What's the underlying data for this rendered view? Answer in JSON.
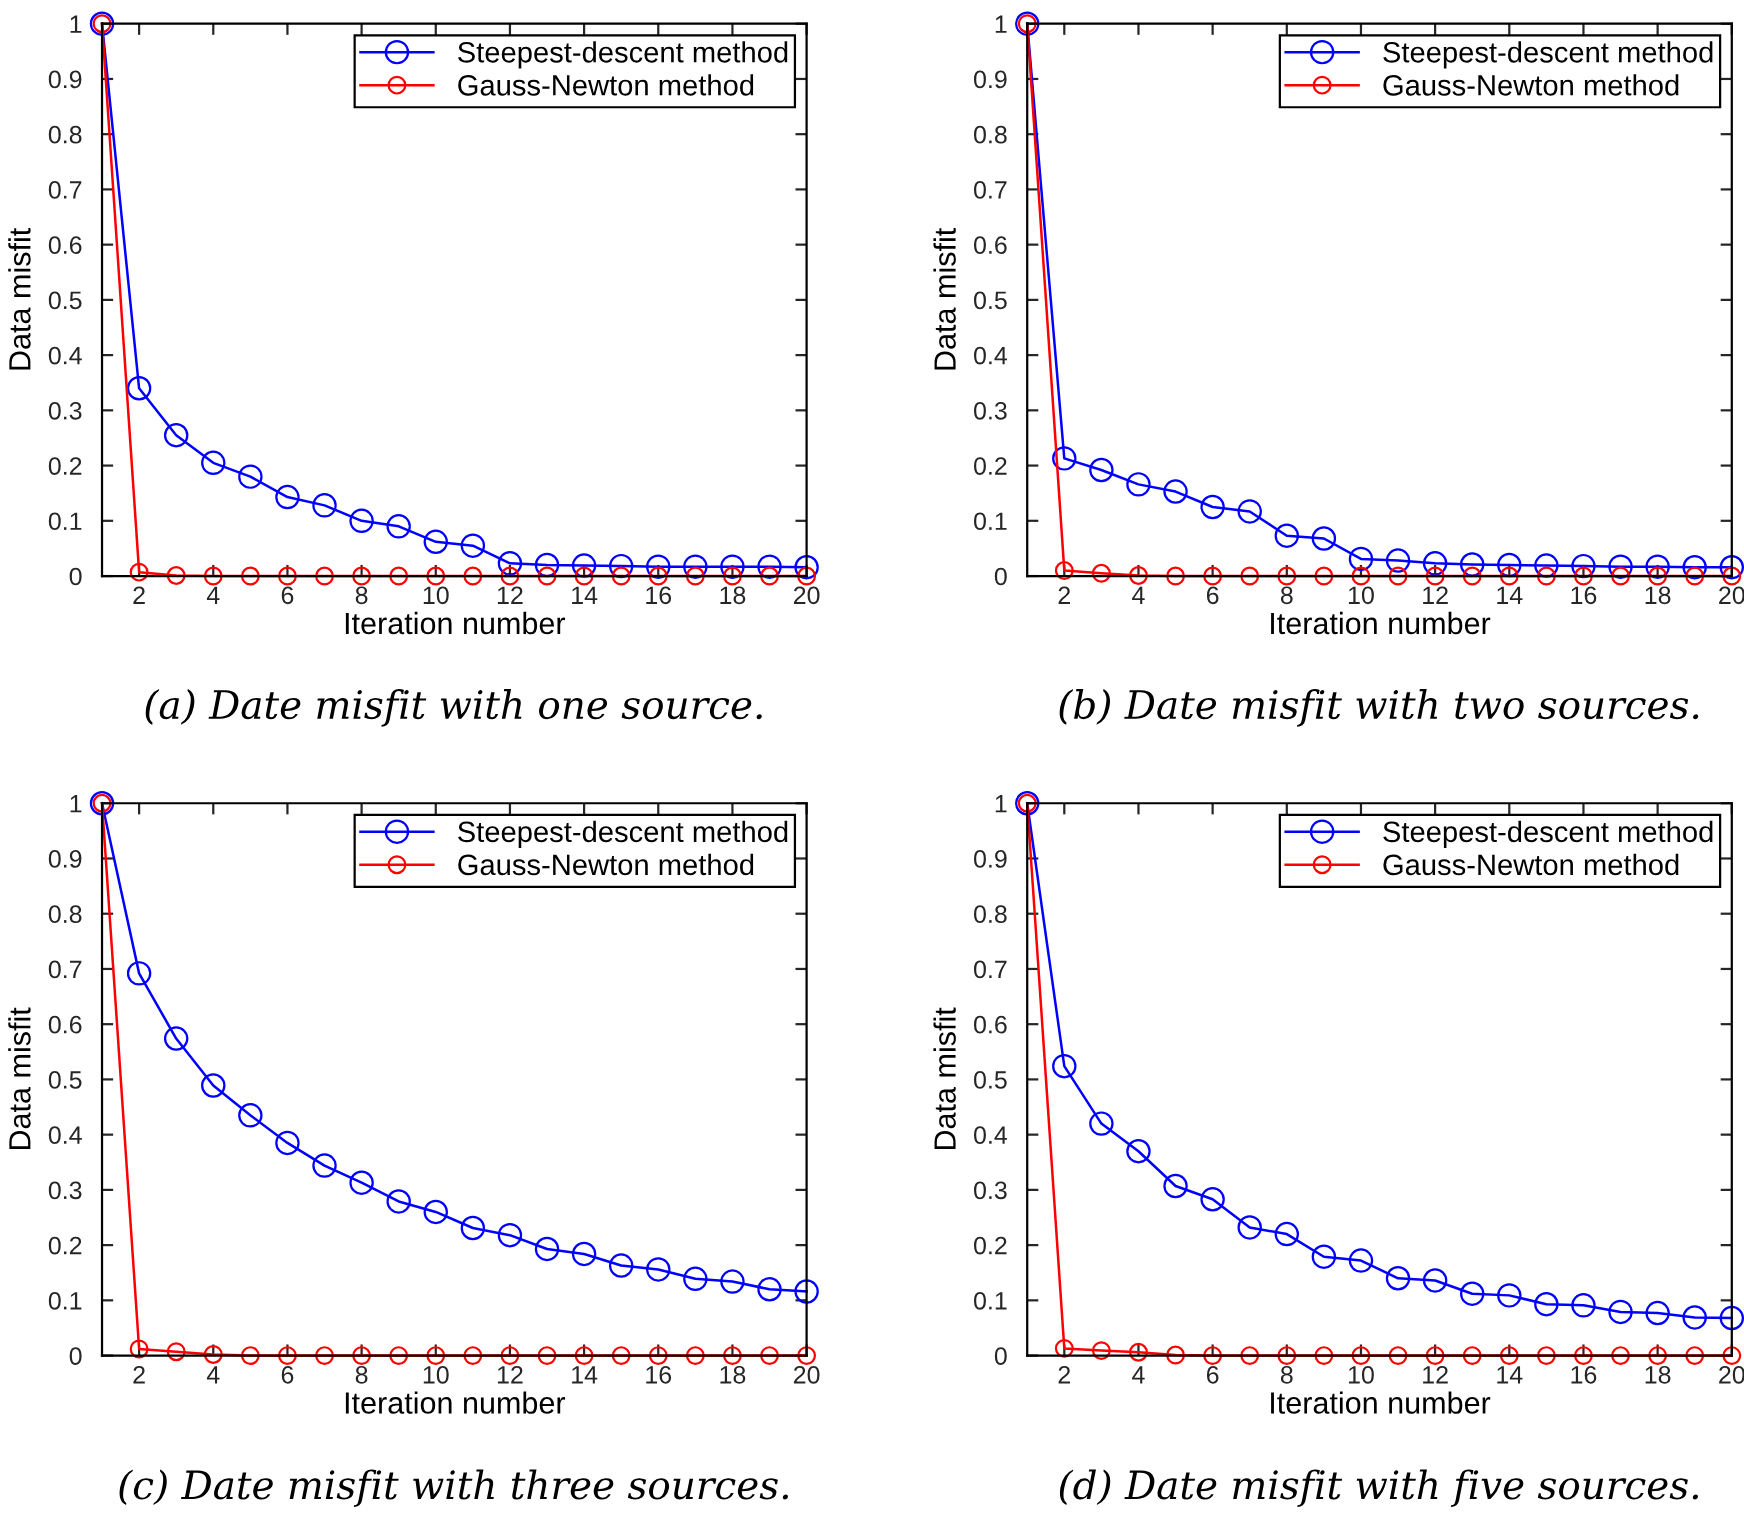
{
  "chart_data": [
    {
      "type": "line",
      "xlabel": "Iteration number",
      "ylabel": "Data misfit",
      "annotations": [
        "(a) Date misfit with one source."
      ],
      "x": [
        1,
        2,
        3,
        4,
        5,
        6,
        7,
        8,
        9,
        10,
        11,
        12,
        13,
        14,
        15,
        16,
        17,
        18,
        19,
        20
      ],
      "xlim": [
        1,
        20
      ],
      "xticks": [
        2,
        4,
        6,
        8,
        10,
        12,
        14,
        16,
        18,
        20
      ],
      "ylim": [
        0,
        1
      ],
      "yticks": [
        0,
        0.1,
        0.2,
        0.3,
        0.4,
        0.5,
        0.6,
        0.7,
        0.8,
        0.9,
        1
      ],
      "legend": "top right",
      "marker": "circle",
      "line_style": "solid",
      "series": [
        {
          "name": "Steepest-descent method",
          "color": "#0000ff",
          "values": [
            1,
            0.34,
            0.255,
            0.205,
            0.18,
            0.143,
            0.128,
            0.1,
            0.09,
            0.062,
            0.055,
            0.023,
            0.02,
            0.019,
            0.018,
            0.017,
            0.017,
            0.017,
            0.017,
            0.016
          ]
        },
        {
          "name": "Gauss-Newton method",
          "color": "#ff0000",
          "values": [
            1,
            0.007,
            0.001,
            0,
            0,
            0,
            0,
            0,
            0,
            0,
            0,
            0,
            0,
            0,
            0,
            0,
            0,
            0,
            0,
            0
          ]
        }
      ]
    },
    {
      "type": "line",
      "xlabel": "Iteration number",
      "ylabel": "Data misfit",
      "annotations": [
        "(b) Date misfit with two sources."
      ],
      "x": [
        1,
        2,
        3,
        4,
        5,
        6,
        7,
        8,
        9,
        10,
        11,
        12,
        13,
        14,
        15,
        16,
        17,
        18,
        19,
        20
      ],
      "xlim": [
        1,
        20
      ],
      "xticks": [
        2,
        4,
        6,
        8,
        10,
        12,
        14,
        16,
        18,
        20
      ],
      "ylim": [
        0,
        1
      ],
      "yticks": [
        0,
        0.1,
        0.2,
        0.3,
        0.4,
        0.5,
        0.6,
        0.7,
        0.8,
        0.9,
        1
      ],
      "legend": "top right",
      "marker": "circle",
      "line_style": "solid",
      "series": [
        {
          "name": "Steepest-descent method",
          "color": "#0000ff",
          "values": [
            1,
            0.213,
            0.192,
            0.166,
            0.153,
            0.125,
            0.117,
            0.073,
            0.068,
            0.031,
            0.028,
            0.023,
            0.021,
            0.02,
            0.019,
            0.018,
            0.017,
            0.017,
            0.016,
            0.016
          ]
        },
        {
          "name": "Gauss-Newton method",
          "color": "#ff0000",
          "values": [
            1,
            0.01,
            0.005,
            0.001,
            0,
            0,
            0,
            0,
            0,
            0,
            0,
            0,
            0,
            0,
            0,
            0,
            0,
            0,
            0,
            0
          ]
        }
      ]
    },
    {
      "type": "line",
      "xlabel": "Iteration number",
      "ylabel": "Data misfit",
      "annotations": [
        "(c) Date misfit with three sources."
      ],
      "x": [
        1,
        2,
        3,
        4,
        5,
        6,
        7,
        8,
        9,
        10,
        11,
        12,
        13,
        14,
        15,
        16,
        17,
        18,
        19,
        20
      ],
      "xlim": [
        1,
        20
      ],
      "xticks": [
        2,
        4,
        6,
        8,
        10,
        12,
        14,
        16,
        18,
        20
      ],
      "ylim": [
        0,
        1
      ],
      "yticks": [
        0,
        0.1,
        0.2,
        0.3,
        0.4,
        0.5,
        0.6,
        0.7,
        0.8,
        0.9,
        1
      ],
      "legend": "top right",
      "marker": "circle",
      "line_style": "solid",
      "series": [
        {
          "name": "Steepest-descent method",
          "color": "#0000ff",
          "values": [
            1,
            0.692,
            0.574,
            0.489,
            0.435,
            0.385,
            0.344,
            0.313,
            0.279,
            0.26,
            0.231,
            0.218,
            0.193,
            0.184,
            0.163,
            0.156,
            0.139,
            0.134,
            0.12,
            0.116
          ]
        },
        {
          "name": "Gauss-Newton method",
          "color": "#ff0000",
          "values": [
            1,
            0.012,
            0.007,
            0.002,
            0,
            0,
            0,
            0,
            0,
            0,
            0,
            0,
            0,
            0,
            0,
            0,
            0,
            0,
            0,
            0
          ]
        }
      ]
    },
    {
      "type": "line",
      "xlabel": "Iteration number",
      "ylabel": "Data misfit",
      "annotations": [
        "(d) Date misfit with five sources."
      ],
      "x": [
        1,
        2,
        3,
        4,
        5,
        6,
        7,
        8,
        9,
        10,
        11,
        12,
        13,
        14,
        15,
        16,
        17,
        18,
        19,
        20
      ],
      "xlim": [
        1,
        20
      ],
      "xticks": [
        2,
        4,
        6,
        8,
        10,
        12,
        14,
        16,
        18,
        20
      ],
      "ylim": [
        0,
        1
      ],
      "yticks": [
        0,
        0.1,
        0.2,
        0.3,
        0.4,
        0.5,
        0.6,
        0.7,
        0.8,
        0.9,
        1
      ],
      "legend": "top right",
      "marker": "circle",
      "line_style": "solid",
      "series": [
        {
          "name": "Steepest-descent method",
          "color": "#0000ff",
          "values": [
            1,
            0.524,
            0.42,
            0.37,
            0.307,
            0.283,
            0.232,
            0.22,
            0.179,
            0.172,
            0.14,
            0.136,
            0.112,
            0.109,
            0.093,
            0.091,
            0.079,
            0.077,
            0.069,
            0.068
          ]
        },
        {
          "name": "Gauss-Newton method",
          "color": "#ff0000",
          "values": [
            1,
            0.013,
            0.009,
            0.006,
            0.001,
            0,
            0,
            0,
            0,
            0,
            0,
            0,
            0,
            0,
            0,
            0,
            0,
            0,
            0,
            0
          ]
        }
      ]
    }
  ]
}
